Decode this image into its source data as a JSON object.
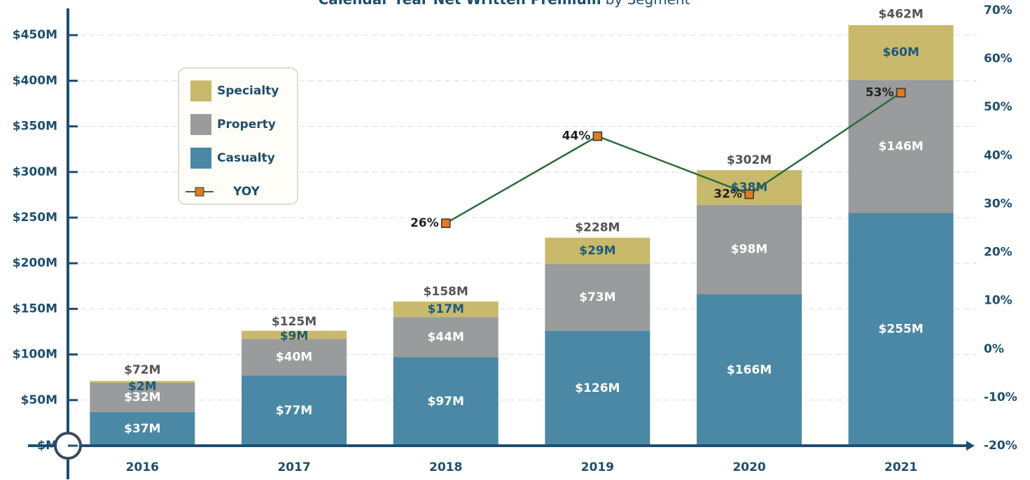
{
  "chart_data": {
    "type": "bar",
    "title": "Calendar Year Net Written Premium",
    "subtitle": "by Segment",
    "categories": [
      "2016",
      "2017",
      "2018",
      "2019",
      "2020",
      "2021"
    ],
    "series": [
      {
        "name": "Casualty",
        "color": "#4a88a5",
        "values": [
          37,
          77,
          97,
          126,
          166,
          255
        ],
        "value_labels": [
          "$37M",
          "$77M",
          "$97M",
          "$126M",
          "$166M",
          "$255M"
        ]
      },
      {
        "name": "Property",
        "color": "#9a9b9c",
        "values": [
          32,
          40,
          44,
          73,
          98,
          146
        ],
        "value_labels": [
          "$32M",
          "$40M",
          "$44M",
          "$73M",
          "$98M",
          "$146M"
        ]
      },
      {
        "name": "Specialty",
        "color": "#c8b96c",
        "values": [
          2,
          9,
          17,
          29,
          38,
          60
        ],
        "value_labels": [
          "$2M",
          "$9M",
          "$17M",
          "$29M",
          "$38M",
          "$60M"
        ]
      },
      {
        "name": "YOY",
        "type": "line",
        "axis": "y2",
        "color": "#2e6b3a",
        "marker_color": "#e07b20",
        "values": [
          null,
          null,
          26,
          44,
          32,
          53
        ],
        "value_labels": [
          null,
          null,
          "26%",
          "44%",
          "32%",
          "53%"
        ]
      }
    ],
    "totals": [
      72,
      125,
      158,
      228,
      302,
      462
    ],
    "total_labels": [
      "$72M",
      "$125M",
      "$158M",
      "$228M",
      "$302M",
      "$462M"
    ],
    "ylim": [
      0,
      477
    ],
    "yticks": [
      {
        "value": 0,
        "label": "$M"
      },
      {
        "value": 50,
        "label": "$50M"
      },
      {
        "value": 100,
        "label": "$100M"
      },
      {
        "value": 150,
        "label": "$150M"
      },
      {
        "value": 200,
        "label": "$200M"
      },
      {
        "value": 250,
        "label": "$250M"
      },
      {
        "value": 300,
        "label": "$300M"
      },
      {
        "value": 350,
        "label": "$350M"
      },
      {
        "value": 400,
        "label": "$400M"
      },
      {
        "value": 450,
        "label": "$450M"
      }
    ],
    "y2lim": [
      -20,
      70
    ],
    "y2ticks": [
      {
        "value": -20,
        "label": "-20%"
      },
      {
        "value": -10,
        "label": "-10%"
      },
      {
        "value": 0,
        "label": "0%"
      },
      {
        "value": 10,
        "label": "10%"
      },
      {
        "value": 20,
        "label": "20%"
      },
      {
        "value": 30,
        "label": "30%"
      },
      {
        "value": 40,
        "label": "40%"
      },
      {
        "value": 50,
        "label": "50%"
      },
      {
        "value": 60,
        "label": "60%"
      },
      {
        "value": 70,
        "label": "70%"
      }
    ],
    "grid": true,
    "legend": "upper left"
  }
}
